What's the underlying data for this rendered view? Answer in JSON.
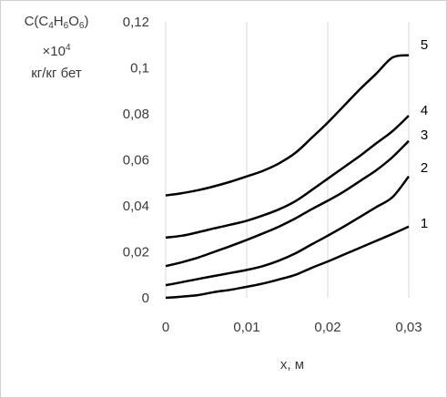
{
  "chart_data": {
    "type": "line",
    "title": "",
    "ylabel": {
      "line1": {
        "pre": "C(C",
        "s1": "4",
        "m1": "H",
        "s2": "6",
        "m2": "O",
        "s3": "6",
        "post": ")"
      },
      "line2": {
        "pre": "×10",
        "sup": "4"
      },
      "line3": "кг/кг бет"
    },
    "xlabel": "x, м",
    "xlim": [
      0,
      0.03
    ],
    "ylim": [
      0,
      0.12
    ],
    "grid": {
      "x_major": true,
      "y_major": false
    },
    "x_ticks": [
      0,
      0.01,
      0.02,
      0.03
    ],
    "x_tick_labels": [
      "0",
      "0,01",
      "0,02",
      "0,03"
    ],
    "y_ticks": [
      0,
      0.02,
      0.04,
      0.06,
      0.08,
      0.1,
      0.12
    ],
    "y_tick_labels": [
      "0",
      "0,02",
      "0,04",
      "0,06",
      "0,08",
      "0,1",
      "0,12"
    ],
    "colors": {
      "lines": "#000000",
      "grid": "#d9d9d9",
      "text": "#3b3b3b"
    },
    "x": [
      0,
      0.002,
      0.004,
      0.006,
      0.008,
      0.01,
      0.012,
      0.014,
      0.016,
      0.018,
      0.02,
      0.022,
      0.024,
      0.026,
      0.028,
      0.03
    ],
    "series": [
      {
        "name": "1",
        "values": [
          0,
          0.0005,
          0.0012,
          0.0025,
          0.0035,
          0.0048,
          0.0062,
          0.008,
          0.01,
          0.013,
          0.0158,
          0.0188,
          0.0218,
          0.0248,
          0.0278,
          0.031
        ]
      },
      {
        "name": "2",
        "values": [
          0.0055,
          0.0068,
          0.0082,
          0.0095,
          0.0108,
          0.0121,
          0.0138,
          0.0162,
          0.0193,
          0.0232,
          0.027,
          0.031,
          0.0352,
          0.0395,
          0.0438,
          0.0528
        ]
      },
      {
        "name": "3",
        "values": [
          0.0138,
          0.0155,
          0.0175,
          0.02,
          0.0225,
          0.0252,
          0.028,
          0.031,
          0.0345,
          0.0385,
          0.0422,
          0.0462,
          0.0508,
          0.0555,
          0.0612,
          0.0682
        ]
      },
      {
        "name": "4",
        "values": [
          0.0262,
          0.027,
          0.0285,
          0.0302,
          0.0318,
          0.0335,
          0.0358,
          0.0385,
          0.042,
          0.0468,
          0.0518,
          0.0568,
          0.0618,
          0.0672,
          0.0725,
          0.0792
        ]
      },
      {
        "name": "5",
        "values": [
          0.0445,
          0.0455,
          0.0468,
          0.0485,
          0.0505,
          0.0528,
          0.0552,
          0.0585,
          0.063,
          0.0695,
          0.0762,
          0.0835,
          0.0908,
          0.0975,
          0.1045,
          0.1055
        ]
      }
    ]
  }
}
